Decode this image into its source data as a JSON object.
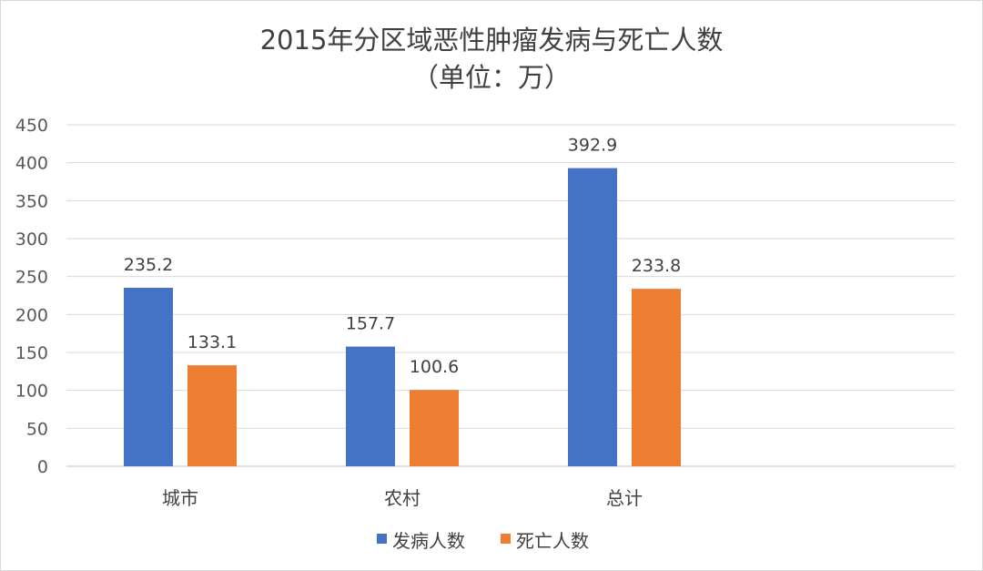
{
  "chart_data": {
    "type": "bar",
    "title": "2015年分区域恶性肿瘤发病与死亡人数",
    "subtitle": "（单位：万）",
    "categories": [
      "城市",
      "农村",
      "总计"
    ],
    "series": [
      {
        "name": "发病人数",
        "color": "#4472c4",
        "values": [
          235.2,
          157.7,
          392.9
        ]
      },
      {
        "name": "死亡人数",
        "color": "#ed7d31",
        "values": [
          133.1,
          100.6,
          233.8
        ]
      }
    ],
    "ylim": [
      0,
      450
    ],
    "yticks": [
      0,
      50,
      100,
      150,
      200,
      250,
      300,
      350,
      400,
      450
    ],
    "grid": true,
    "legend_position": "bottom"
  }
}
